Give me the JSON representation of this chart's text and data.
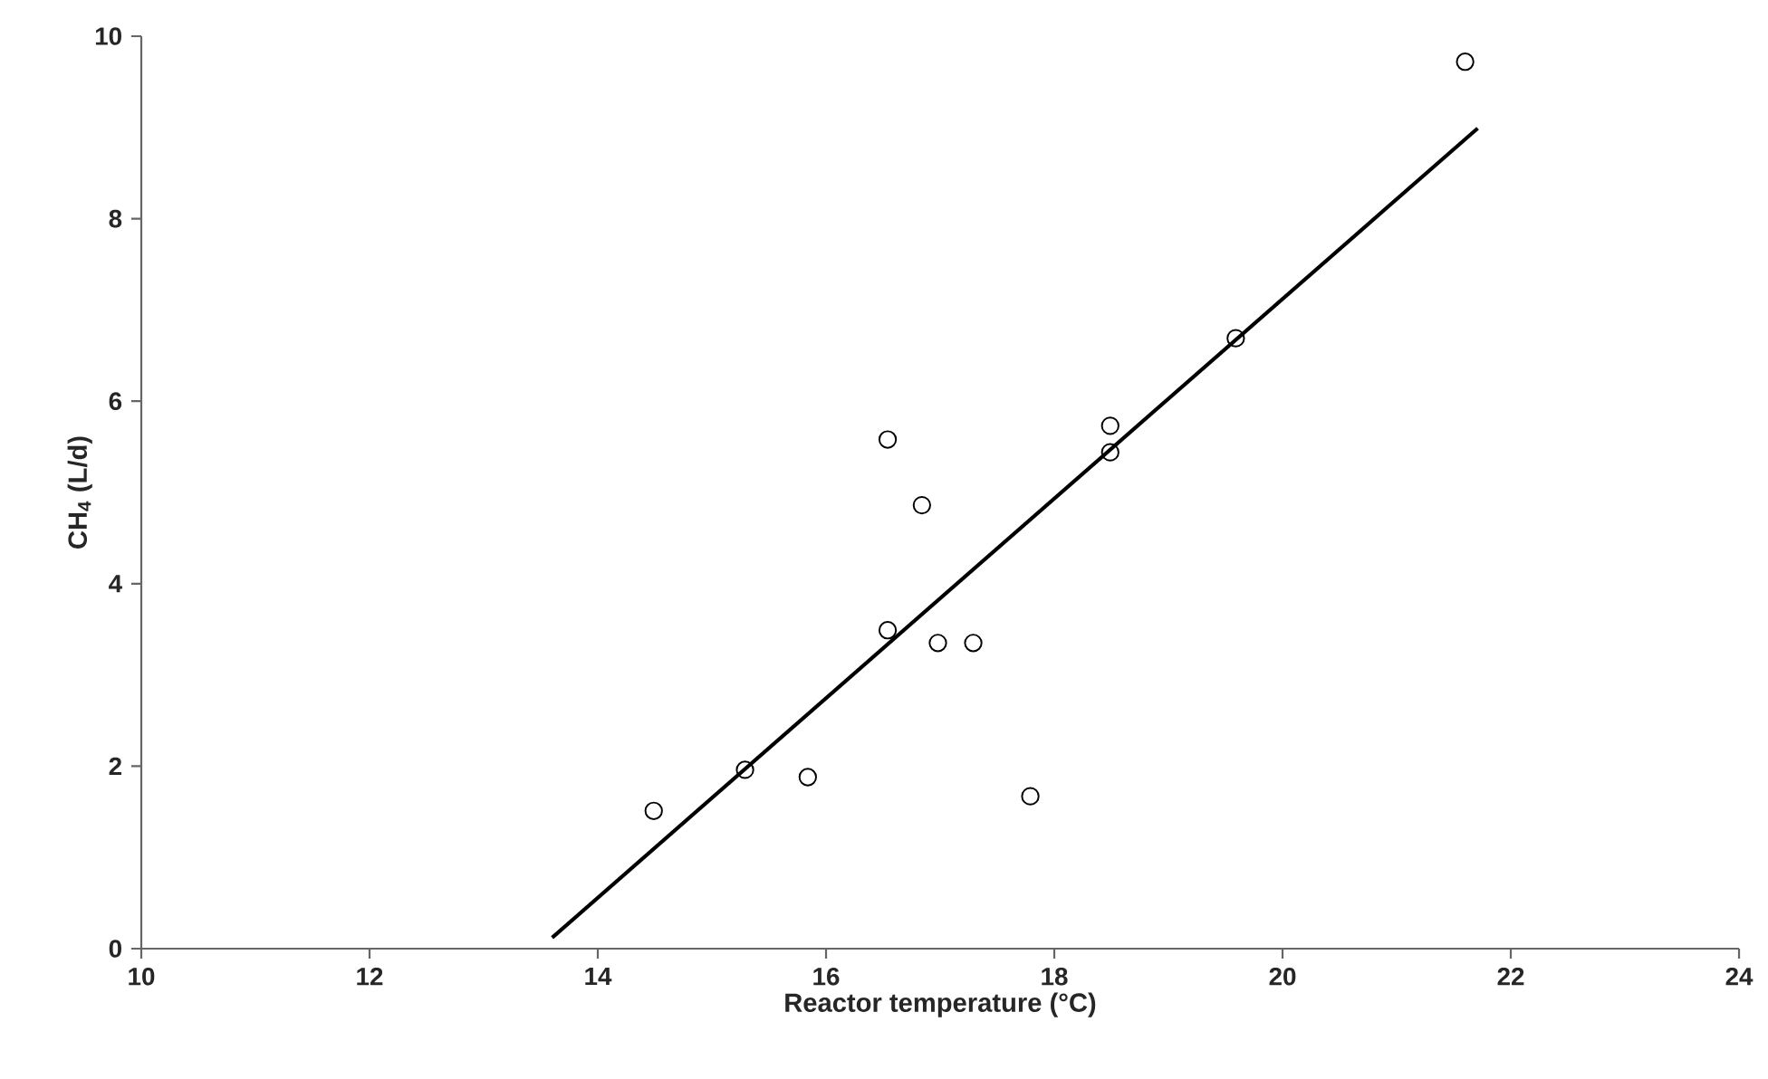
{
  "chart_data": {
    "type": "scatter",
    "xlabel": "Reactor temperature (°C)",
    "ylabel": "CH$_{4}$ (L/d)",
    "xlim": [
      10,
      24
    ],
    "ylim": [
      0,
      10
    ],
    "xticks": [
      10,
      12,
      14,
      16,
      18,
      20,
      22,
      24
    ],
    "yticks": [
      0,
      2,
      4,
      6,
      8,
      10
    ],
    "marker": "circle",
    "series": [
      {
        "color": "#000000",
        "x": [
          14.49,
          15.29,
          15.84,
          16.54,
          16.54,
          16.84,
          16.98,
          17.29,
          17.79,
          18.49,
          18.49,
          19.59,
          21.6
        ],
        "values": [
          1.51,
          1.96,
          1.88,
          3.49,
          5.58,
          4.86,
          3.35,
          3.35,
          1.67,
          5.73,
          5.44,
          6.69,
          9.72
        ]
      },
      {
        "type": "line",
        "color": "#000000",
        "marker": "none",
        "line_style": "solid",
        "x": [
          13.6,
          21.71
        ],
        "values": [
          0.12,
          8.99
        ]
      }
    ]
  }
}
